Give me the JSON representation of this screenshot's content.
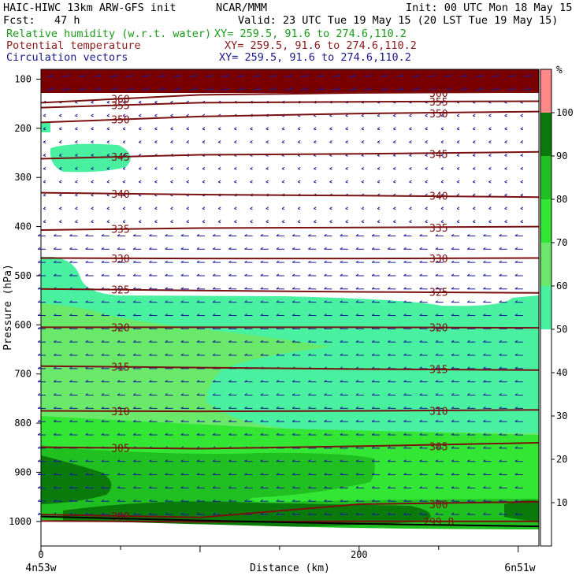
{
  "header": {
    "line1_left": "HAIC-HIWC 13km ARW-GFS init",
    "line1_mid": "NCAR/MMM",
    "line1_right": "Init: 00 UTC Mon 18 May 15",
    "fcst": "Fcst:   47 h",
    "valid": "Valid: 23 UTC Tue 19 May 15 (20 LST Tue 19 May 15)",
    "field1_name": "Relative humidity (w.r.t. water)",
    "field1_xy": "XY= 259.5, 91.6 to 274.6,110.2",
    "field2_name": "Potential temperature",
    "field2_xy": "XY= 259.5, 91.6 to 274.6,110.2",
    "field3_name": "Circulation vectors",
    "field3_xy": "XY= 259.5, 91.6 to 274.6,110.2"
  },
  "colors": {
    "rh_field": "#1a9a1a",
    "theta_field": "#8b1a1a",
    "vector_field": "#1a1a8b",
    "theta_line": "#7a1010",
    "vector": "#1c1c9a",
    "terrain": "#000000"
  },
  "chart_data": {
    "type": "contour",
    "ylabel": "Pressure (hPa)",
    "xlabel": "Distance (km)",
    "x_range_km": [
      0,
      313
    ],
    "y_range_hPa": [
      1050,
      80
    ],
    "y_ticks": [
      100,
      200,
      300,
      400,
      500,
      600,
      700,
      800,
      900,
      1000
    ],
    "x_ticks": [
      0,
      200
    ],
    "x_end_labels": [
      "4n53w",
      "6n51w"
    ],
    "colorbar": {
      "unit": "%",
      "levels": [
        0,
        10,
        20,
        30,
        40,
        50,
        60,
        70,
        80,
        90,
        100
      ],
      "tick_labels": [
        "10",
        "20",
        "30",
        "40",
        "50",
        "60",
        "70",
        "80",
        "90",
        "100"
      ],
      "colors": [
        "#ffffff",
        "#ffffff",
        "#ffffff",
        "#ffffff",
        "#ffffff",
        "#48f0a0",
        "#6ae86a",
        "#33e633",
        "#20c020",
        "#0a7a0a",
        "#ff8888"
      ]
    },
    "theta_contours": [
      {
        "label": "360",
        "p": [
          148,
          132,
          128,
          126
        ]
      },
      {
        "label": "355",
        "p": [
          158,
          148,
          146,
          145
        ]
      },
      {
        "label": "350",
        "p": [
          188,
          176,
          170,
          166
        ]
      },
      {
        "label": "345",
        "p": [
          262,
          254,
          252,
          248
        ]
      },
      {
        "label": "340",
        "p": [
          331,
          335,
          337,
          340
        ]
      },
      {
        "label": "335",
        "p": [
          407,
          403,
          402,
          400
        ]
      },
      {
        "label": "330",
        "p": [
          464,
          465,
          465,
          464
        ]
      },
      {
        "label": "325",
        "p": [
          527,
          530,
          533,
          535
        ]
      },
      {
        "label": "320",
        "p": [
          605,
          605,
          605,
          606
        ]
      },
      {
        "label": "315",
        "p": [
          684,
          687,
          690,
          692
        ]
      },
      {
        "label": "310",
        "p": [
          775,
          776,
          775,
          773
        ]
      },
      {
        "label": "305",
        "p": [
          849,
          852,
          847,
          840
        ]
      },
      {
        "label": "300",
        "p": [
          986,
          992,
          965,
          960
        ]
      },
      {
        "label": "299.8",
        "p": [
          999,
          1001,
          1000,
          1000
        ]
      }
    ],
    "theta_x_km": [
      0,
      100,
      200,
      313
    ],
    "terrain_hPa": [
      990,
      998,
      1005,
      1010
    ]
  }
}
